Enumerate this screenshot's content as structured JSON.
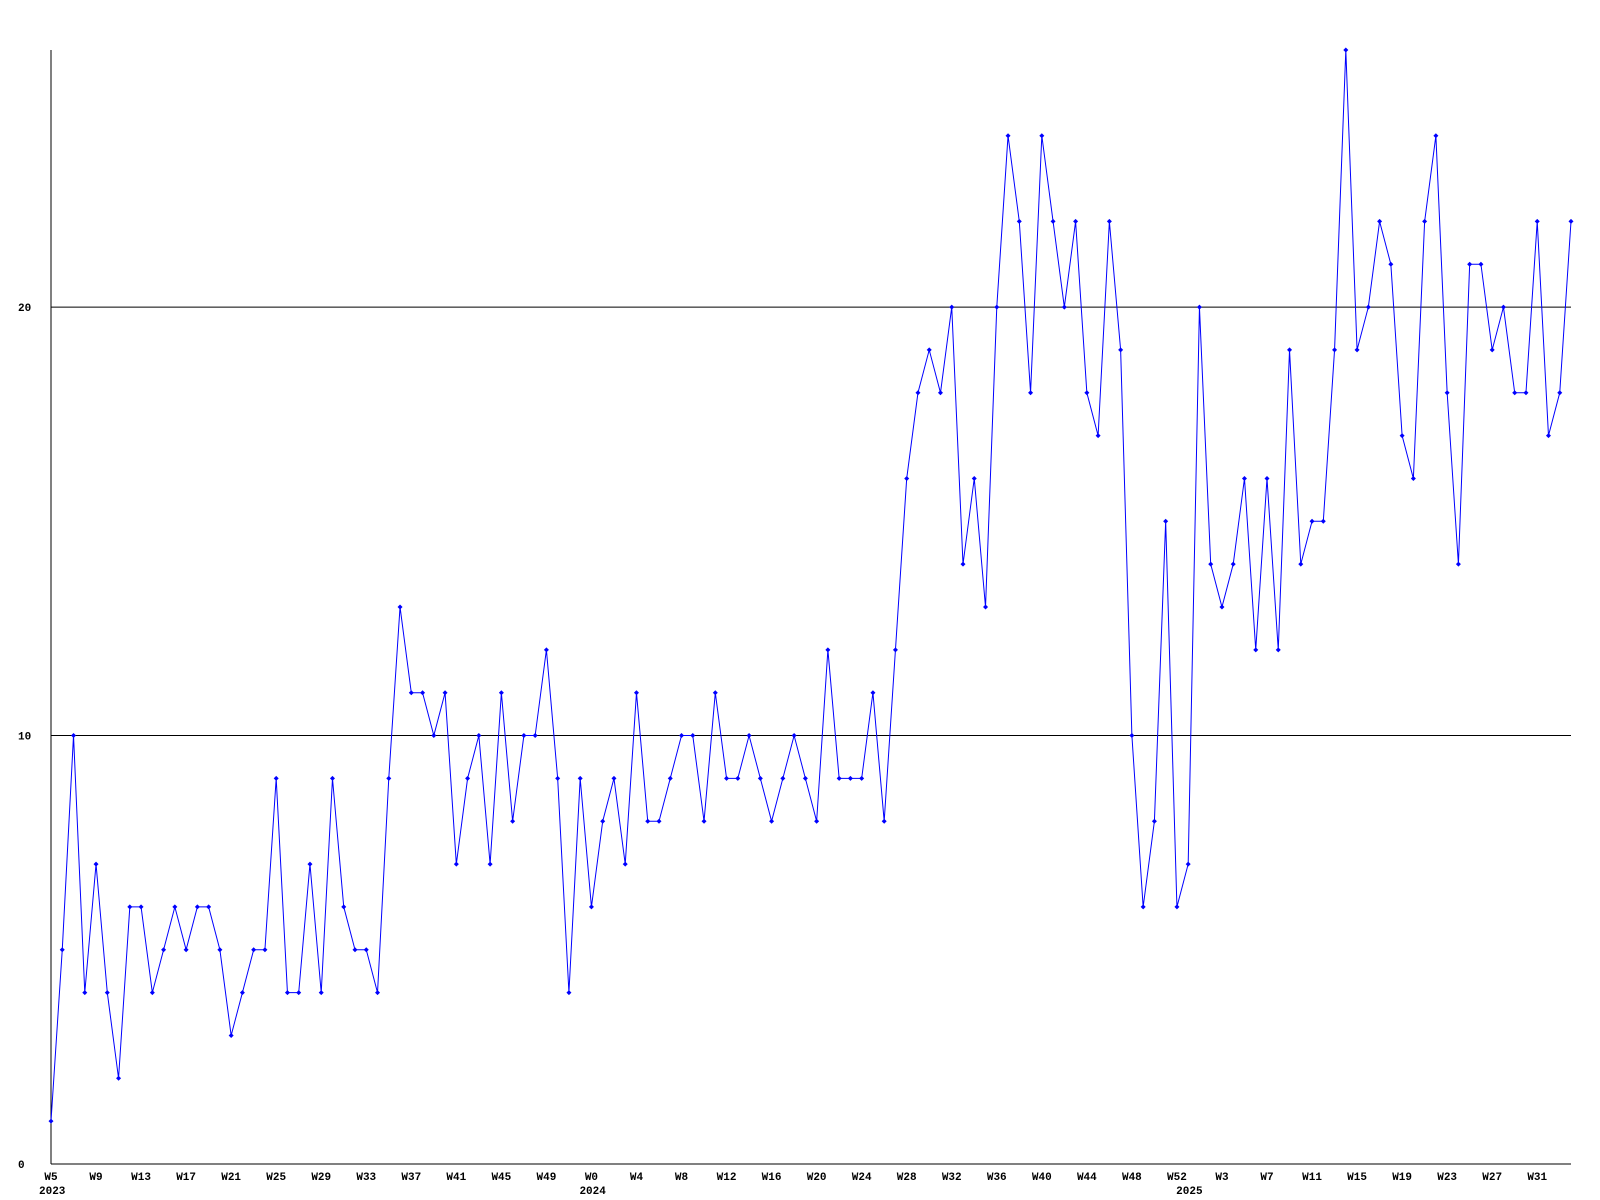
{
  "chart_data": {
    "type": "line",
    "color": "#0000ff",
    "grid": true,
    "ylim": [
      0,
      26
    ],
    "yticks": [
      0,
      10,
      20
    ],
    "categories": [
      "W5",
      null,
      null,
      null,
      "W9",
      null,
      null,
      null,
      "W13",
      null,
      null,
      null,
      "W17",
      null,
      null,
      null,
      "W21",
      null,
      null,
      null,
      "W25",
      null,
      null,
      null,
      "W29",
      null,
      null,
      null,
      "W33",
      null,
      null,
      null,
      "W37",
      null,
      null,
      null,
      "W41",
      null,
      null,
      null,
      "W45",
      null,
      null,
      null,
      "W49",
      null,
      null,
      null,
      "W0",
      null,
      null,
      null,
      "W4",
      null,
      null,
      null,
      "W8",
      null,
      null,
      null,
      "W12",
      null,
      null,
      null,
      "W16",
      null,
      null,
      null,
      "W20",
      null,
      null,
      null,
      "W24",
      null,
      null,
      null,
      "W28",
      null,
      null,
      null,
      "W32",
      null,
      null,
      null,
      "W36",
      null,
      null,
      null,
      "W40",
      null,
      null,
      null,
      "W44",
      null,
      null,
      null,
      "W48",
      null,
      null,
      null,
      "W52",
      null,
      null,
      null,
      "W3",
      null,
      null,
      null,
      "W7",
      null,
      null,
      null,
      "W11",
      null,
      null,
      null,
      "W15",
      null,
      null,
      null,
      "W19",
      null,
      null,
      null,
      "W23",
      null,
      null,
      null,
      "W27",
      null,
      null,
      null,
      "W31",
      null,
      null,
      null
    ],
    "year_labels": [
      {
        "value": 0,
        "label": "2023"
      },
      {
        "value": 48,
        "label": "2024"
      },
      {
        "value": 101,
        "label": "2025"
      }
    ],
    "values": [
      1,
      5,
      10,
      4,
      7,
      4,
      2,
      6,
      6,
      4,
      5,
      6,
      5,
      6,
      6,
      5,
      3,
      4,
      5,
      5,
      9,
      4,
      4,
      7,
      4,
      9,
      6,
      5,
      5,
      4,
      9,
      13,
      11,
      11,
      10,
      11,
      7,
      9,
      10,
      7,
      11,
      8,
      10,
      10,
      12,
      9,
      4,
      9,
      6,
      8,
      9,
      7,
      11,
      8,
      8,
      9,
      10,
      10,
      8,
      11,
      9,
      9,
      10,
      9,
      8,
      9,
      10,
      9,
      8,
      12,
      9,
      9,
      9,
      11,
      8,
      12,
      16,
      18,
      19,
      18,
      20,
      14,
      16,
      13,
      20,
      24,
      22,
      18,
      24,
      22,
      20,
      22,
      18,
      17,
      22,
      19,
      10,
      6,
      8,
      15,
      6,
      7,
      20,
      14,
      13,
      14,
      16,
      12,
      16,
      12,
      19,
      14,
      15,
      15,
      19,
      26,
      19,
      20,
      22,
      21,
      17,
      16,
      22,
      24,
      18,
      14,
      21,
      21,
      19,
      20,
      18,
      18,
      22,
      17,
      18,
      22
    ]
  }
}
